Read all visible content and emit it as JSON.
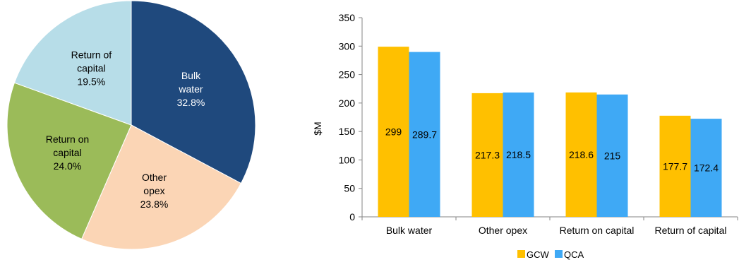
{
  "chart_data": [
    {
      "type": "pie",
      "slices": [
        {
          "label_lines": [
            "Bulk",
            "water"
          ],
          "value_label": "32.8%",
          "value": 32.8,
          "color": "#1f497d"
        },
        {
          "label_lines": [
            "Other",
            "opex"
          ],
          "value_label": "23.8%",
          "value": 23.8,
          "color": "#fbd5b5"
        },
        {
          "label_lines": [
            "Return on",
            "capital"
          ],
          "value_label": "24.0%",
          "value": 24.0,
          "color": "#9bbb59"
        },
        {
          "label_lines": [
            "Return of",
            "capital"
          ],
          "value_label": "19.5%",
          "value": 19.5,
          "color": "#b7dde8"
        }
      ]
    },
    {
      "type": "bar",
      "categories": [
        "Bulk water",
        "Other opex",
        "Return on capital",
        "Return of capital"
      ],
      "series": [
        {
          "name": "GCW",
          "values": [
            299,
            217.3,
            218.6,
            177.7
          ],
          "labels": [
            "299",
            "217.3",
            "218.6",
            "177.7"
          ],
          "color": "#ffc000"
        },
        {
          "name": "QCA",
          "values": [
            289.7,
            218.5,
            215,
            172.4
          ],
          "labels": [
            "289.7",
            "218.5",
            "215",
            "172.4"
          ],
          "color": "#3fa9f5"
        }
      ],
      "ylabel": "$M",
      "ylim": [
        0,
        350
      ],
      "yticks": [
        "0",
        "50",
        "100",
        "150",
        "200",
        "250",
        "300",
        "350"
      ],
      "grid": false,
      "legend": "bottom"
    }
  ]
}
